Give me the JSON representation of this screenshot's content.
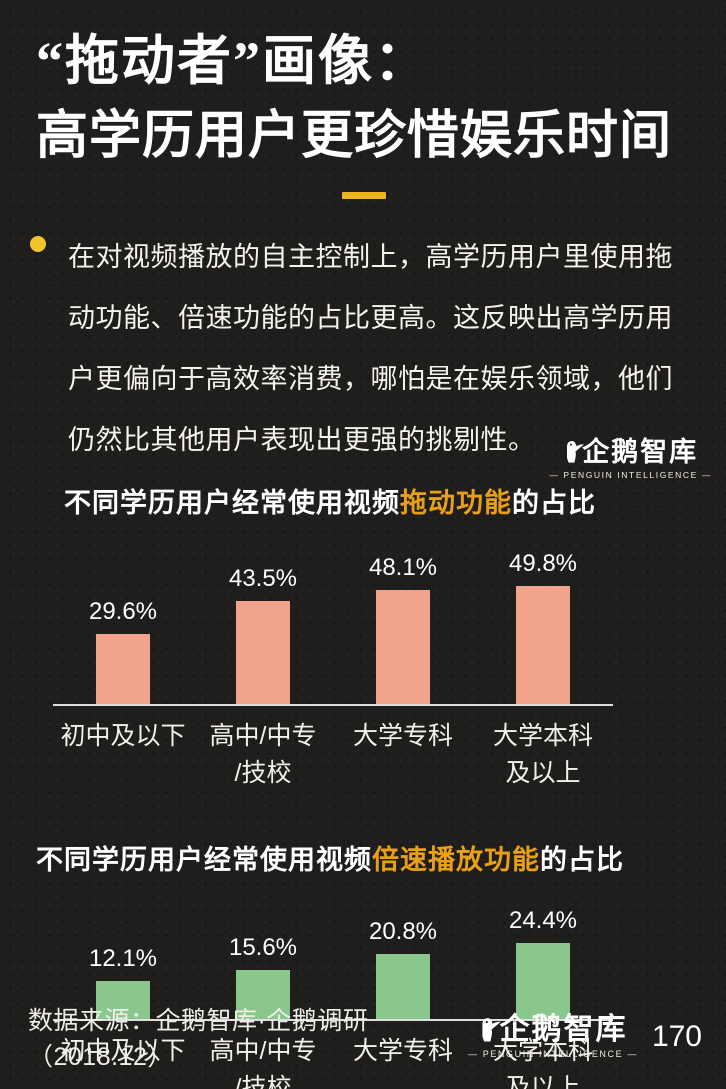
{
  "page": {
    "title_line1": "“拖动者”画像：",
    "title_line2": "高学历用户更珍惜娱乐时间",
    "intro_text": "在对视频播放的自主控制上，高学历用户里使用拖动功能、倍速功能的占比更高。这反映出高学历用户更偏向于高效率消费，哪怕是在娱乐领域，他们仍然比其他用户表现出更强的挑剔性。",
    "source_text": "数据来源：企鹅智库·企鹅调研（2018.12）",
    "page_number": "170"
  },
  "logo": {
    "name": "企鹅智库",
    "tagline": "— PENGUIN INTELLIGENCE —",
    "icon": "penguin-icon"
  },
  "colors": {
    "background": "#201E1C",
    "accent_yellow": "#EDB51E",
    "bullet_yellow": "#F2C42C",
    "highlight_orange": "#E8A019",
    "bar_salmon": "#F2A38C",
    "bar_green": "#89C78C",
    "axis_gray": "#DEDEDE",
    "text_white": "#FFFFFF"
  },
  "chart_data": [
    {
      "type": "bar",
      "title_prefix": "不同学历用户经常使用视频",
      "title_highlight": "拖动功能",
      "title_suffix": "的占比",
      "categories": [
        "初中及以下",
        "高中/中专\n/技校",
        "大学专科",
        "大学本科\n及以上"
      ],
      "values": [
        29.6,
        43.5,
        48.1,
        49.8
      ],
      "value_labels": [
        "29.6%",
        "43.5%",
        "48.1%",
        "49.8%"
      ],
      "bar_color": "#F2A38C",
      "ylim": [
        0,
        55
      ],
      "grid": false,
      "legend": "none"
    },
    {
      "type": "bar",
      "title_prefix": "不同学历用户经常使用视频",
      "title_highlight": "倍速播放功能",
      "title_suffix": "的占比",
      "categories": [
        "初中及以下",
        "高中/中专\n/技校",
        "大学专科",
        "大学本科\n及以上"
      ],
      "values": [
        12.1,
        15.6,
        20.8,
        24.4
      ],
      "value_labels": [
        "12.1%",
        "15.6%",
        "20.8%",
        "24.4%"
      ],
      "bar_color": "#89C78C",
      "ylim": [
        0,
        27
      ],
      "grid": false,
      "legend": "none"
    }
  ]
}
